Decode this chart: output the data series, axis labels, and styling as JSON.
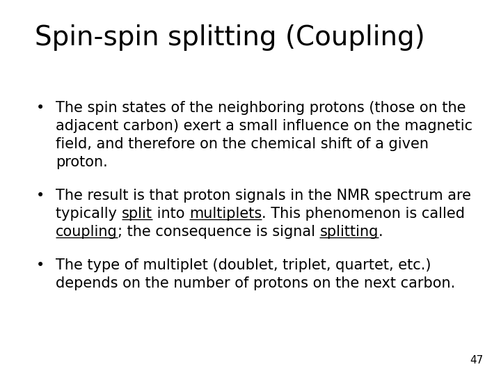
{
  "title": "Spin-spin splitting (Coupling)",
  "title_fontsize": 28,
  "background_color": "#ffffff",
  "text_color": "#000000",
  "bullet1_lines": [
    "The spin states of the neighboring protons (those on the",
    "adjacent carbon) exert a small influence on the magnetic",
    "field, and therefore on the chemical shift of a given",
    "proton."
  ],
  "bullet2_line1": "The result is that proton signals in the NMR spectrum are",
  "bullet2_line2_segs": [
    [
      "typically ",
      false
    ],
    [
      "split",
      true
    ],
    [
      " into ",
      false
    ],
    [
      "multiplets",
      true
    ],
    [
      ". This phenomenon is called",
      false
    ]
  ],
  "bullet2_line3_segs": [
    [
      "coupling",
      true
    ],
    [
      "; the consequence is signal ",
      false
    ],
    [
      "splitting",
      true
    ],
    [
      ".",
      false
    ]
  ],
  "bullet3_lines": [
    "The type of multiplet (doublet, triplet, quartet, etc.)",
    "depends on the number of protons on the next carbon."
  ],
  "page_number": "47",
  "body_fontsize": 15,
  "body_font": "DejaVu Sans",
  "title_font": "DejaVu Sans"
}
